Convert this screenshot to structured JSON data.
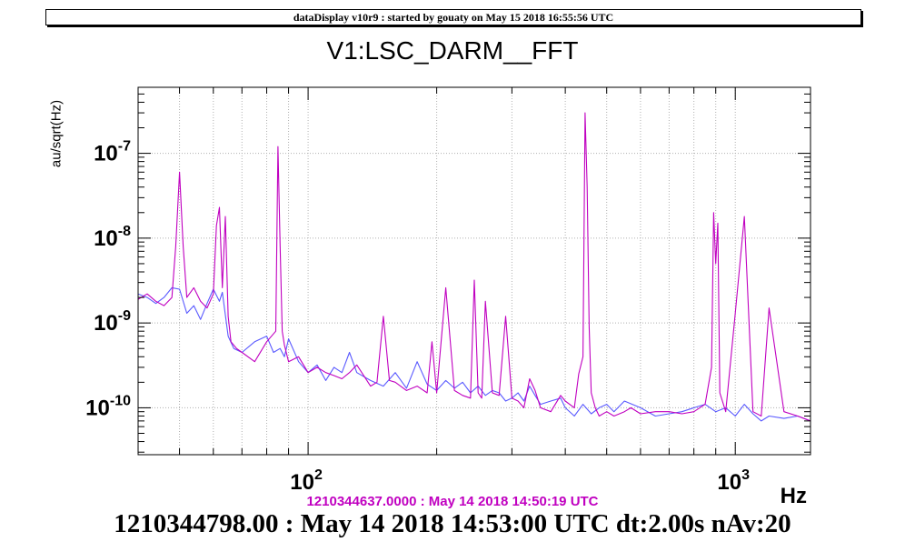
{
  "banner": "dataDisplay v10r9 : started by gouaty on May 15 2018 16:55:56 UTC",
  "chart_data": {
    "type": "line",
    "title": "V1:LSC_DARM__FFT",
    "ylabel": "au/sqrt(Hz)",
    "xlabel": "Hz",
    "xscale": "log",
    "yscale": "log",
    "xlim": [
      40,
      1500
    ],
    "ylim": [
      2.8e-11,
      6e-07
    ],
    "grid": true,
    "x_ticks": [
      {
        "value": 100,
        "base": "10",
        "exp": "2"
      },
      {
        "value": 1000,
        "base": "10",
        "exp": "3"
      }
    ],
    "y_ticks": [
      {
        "value": 1e-10,
        "base": "10",
        "exp": "-10"
      },
      {
        "value": 1e-09,
        "base": "10",
        "exp": "-9"
      },
      {
        "value": 1e-08,
        "base": "10",
        "exp": "-8"
      },
      {
        "value": 1e-07,
        "base": "10",
        "exp": "-7"
      }
    ],
    "series": [
      {
        "color": "#5a5aff",
        "x": [
          40,
          42,
          44,
          46,
          48,
          50,
          52,
          54,
          56,
          58,
          60,
          62,
          63,
          65,
          67,
          70,
          75,
          80,
          83,
          86,
          88,
          90,
          95,
          100,
          105,
          110,
          115,
          120,
          125,
          130,
          140,
          150,
          160,
          170,
          180,
          190,
          200,
          210,
          220,
          230,
          240,
          250,
          260,
          270,
          280,
          290,
          300,
          310,
          320,
          330,
          340,
          350,
          370,
          390,
          400,
          420,
          440,
          460,
          480,
          500,
          520,
          550,
          600,
          650,
          700,
          750,
          800,
          850,
          900,
          950,
          1000,
          1050,
          1100,
          1150,
          1200,
          1300,
          1400,
          1500
        ],
        "y": [
          2.2e-09,
          2e-09,
          1.7e-09,
          2e-09,
          2.6e-09,
          2.5e-09,
          1.3e-09,
          1.6e-09,
          1.1e-09,
          1.7e-09,
          2.5e-09,
          1.8e-09,
          2.3e-09,
          7e-10,
          5e-10,
          4.5e-10,
          6e-10,
          7e-10,
          4.5e-10,
          5e-10,
          4e-10,
          6.5e-10,
          3.5e-10,
          2.6e-10,
          3.2e-10,
          2.1e-10,
          3e-10,
          2.6e-10,
          4.5e-10,
          2.6e-10,
          2.1e-10,
          1.8e-10,
          2.6e-10,
          1.7e-10,
          3.5e-10,
          1.9e-10,
          1.6e-10,
          2.1e-10,
          1.7e-10,
          2e-10,
          1.5e-10,
          1.8e-10,
          1.4e-10,
          1.6e-10,
          1.5e-10,
          1.2e-10,
          1.3e-10,
          1.5e-10,
          1.2e-10,
          1.8e-10,
          1.4e-10,
          1.1e-10,
          1.2e-10,
          1.3e-10,
          1e-10,
          8e-11,
          1.1e-10,
          8.5e-11,
          1e-10,
          1.1e-10,
          9e-11,
          1.2e-10,
          1e-10,
          8e-11,
          8.5e-11,
          9e-11,
          1e-10,
          1.1e-10,
          9e-11,
          1e-10,
          8e-11,
          1.1e-10,
          8.5e-11,
          7e-11,
          8e-11,
          7.5e-11,
          8e-11,
          7e-11
        ]
      },
      {
        "color": "#c000c0",
        "x": [
          40,
          42,
          44,
          46,
          48,
          49,
          50,
          51,
          52,
          54,
          56,
          58,
          60,
          61,
          62,
          63,
          64,
          65,
          66,
          68,
          70,
          75,
          80,
          84,
          85,
          86,
          87,
          88,
          90,
          95,
          100,
          105,
          110,
          115,
          120,
          125,
          130,
          140,
          145,
          150,
          155,
          160,
          170,
          180,
          190,
          195,
          200,
          210,
          220,
          230,
          240,
          245,
          250,
          255,
          260,
          270,
          280,
          290,
          300,
          310,
          320,
          330,
          340,
          350,
          370,
          390,
          400,
          420,
          430,
          440,
          445,
          450,
          455,
          460,
          470,
          480,
          500,
          520,
          550,
          570,
          600,
          650,
          700,
          750,
          800,
          850,
          880,
          890,
          900,
          910,
          920,
          950,
          1000,
          1050,
          1100,
          1150,
          1200,
          1300,
          1400,
          1500
        ],
        "y": [
          1.9e-09,
          2.2e-09,
          1.8e-09,
          1.6e-09,
          2e-09,
          8e-09,
          6e-08,
          8e-09,
          2e-09,
          2.6e-09,
          1.8e-09,
          1.5e-09,
          2.2e-09,
          1.4e-08,
          2.3e-08,
          2.6e-09,
          1.8e-08,
          1.2e-09,
          6e-10,
          5e-10,
          4.5e-10,
          3.5e-10,
          6e-10,
          8e-10,
          1.2e-07,
          8e-09,
          8e-10,
          5.5e-10,
          3.5e-10,
          4e-10,
          2.6e-10,
          3e-10,
          2.6e-10,
          2.4e-10,
          2.2e-10,
          2.6e-10,
          3.2e-10,
          1.8e-10,
          2e-10,
          1.2e-09,
          2.1e-10,
          2e-10,
          1.6e-10,
          1.8e-10,
          1.5e-10,
          6e-10,
          1.5e-10,
          2.6e-09,
          1.6e-10,
          1.4e-10,
          1.3e-10,
          3.2e-09,
          1.5e-10,
          1.3e-10,
          1.8e-09,
          1.5e-10,
          1.4e-10,
          1.2e-09,
          1.3e-10,
          1.2e-10,
          1e-10,
          2.2e-10,
          1.6e-10,
          1e-10,
          9e-11,
          1.4e-10,
          1.2e-10,
          1e-10,
          2.5e-10,
          4e-10,
          3e-07,
          4e-08,
          9e-10,
          1.5e-10,
          1e-10,
          8e-11,
          9e-11,
          8e-11,
          9e-11,
          1e-10,
          8.5e-11,
          9e-11,
          9e-11,
          8.5e-11,
          9e-11,
          1.1e-10,
          3e-10,
          2e-08,
          5e-09,
          1.5e-08,
          1.5e-10,
          9e-11,
          1.3e-09,
          1.8e-08,
          9e-11,
          8e-11,
          1.5e-09,
          9e-11,
          8e-11,
          7e-11
        ]
      }
    ]
  },
  "ref_label": "1210344637.0000 : May 14 2018 14:50:19 UTC",
  "footer": "1210344798.00 : May 14 2018 14:53:00 UTC dt:2.00s nAv:20"
}
